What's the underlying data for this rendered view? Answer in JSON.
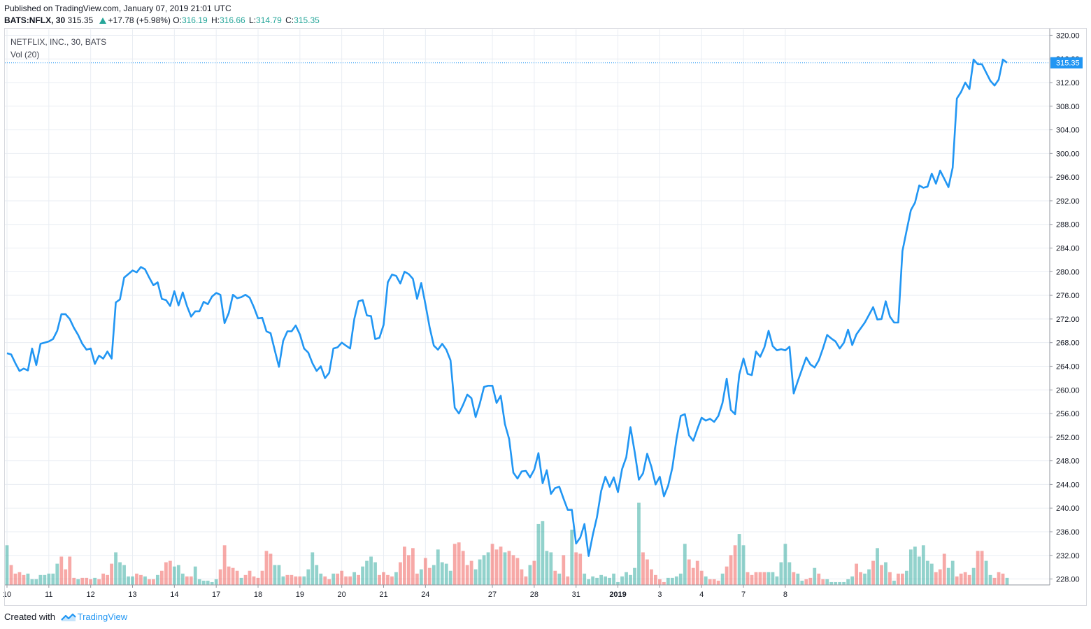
{
  "header": {
    "published": "Published on TradingView.com, January 07, 2019 21:01 UTC",
    "symbol": "BATS:NFLX, 30",
    "last": "315.35",
    "change": "+17.78 (+5.98%)",
    "open_label": "O:",
    "open": "316.19",
    "high_label": "H:",
    "high": "316.66",
    "low_label": "L:",
    "low": "314.79",
    "close_label": "C:",
    "close": "315.35",
    "up_icon": "triangle-up-icon"
  },
  "legend": {
    "series": "NETFLIX, INC., 30, BATS",
    "volume": "Vol (20)"
  },
  "footer": {
    "created": "Created with",
    "brand": "TradingView",
    "logo_icon": "tradingview-logo-icon"
  },
  "colors": {
    "line": "#2196f3",
    "vol_up": "#26a69a",
    "vol_down": "#ef5350",
    "grid": "#e9edf3",
    "axis": "#9598a1"
  },
  "chart_data": {
    "type": "line",
    "ylim": [
      227,
      321
    ],
    "y_ticks": [
      228,
      232,
      236,
      240,
      244,
      248,
      252,
      256,
      260,
      264,
      268,
      272,
      276,
      280,
      284,
      288,
      292,
      296,
      300,
      304,
      308,
      312,
      316,
      320
    ],
    "last_price_label": "315.35",
    "last_price": 315.35,
    "x_ticks": [
      {
        "label": "10",
        "i": 0
      },
      {
        "label": "11",
        "i": 10
      },
      {
        "label": "12",
        "i": 20
      },
      {
        "label": "13",
        "i": 30
      },
      {
        "label": "14",
        "i": 40
      },
      {
        "label": "17",
        "i": 50
      },
      {
        "label": "18",
        "i": 60
      },
      {
        "label": "19",
        "i": 70
      },
      {
        "label": "20",
        "i": 80
      },
      {
        "label": "21",
        "i": 90
      },
      {
        "label": "24",
        "i": 100
      },
      {
        "label": "27",
        "i": 116
      },
      {
        "label": "28",
        "i": 126
      },
      {
        "label": "31",
        "i": 136
      },
      {
        "label": "2019",
        "i": 146,
        "bold": true
      },
      {
        "label": "3",
        "i": 156
      },
      {
        "label": "4",
        "i": 166
      },
      {
        "label": "7",
        "i": 176
      },
      {
        "label": "8",
        "i": 186
      }
    ],
    "series": [
      {
        "name": "NETFLIX, INC., 30, BATS",
        "values": [
          266.2,
          266.0,
          264.5,
          263.2,
          263.6,
          263.3,
          267.0,
          264.2,
          267.8,
          268.0,
          268.2,
          268.6,
          270.0,
          272.8,
          272.8,
          272.0,
          270.5,
          269.3,
          267.8,
          266.8,
          267.0,
          264.4,
          265.8,
          265.3,
          266.5,
          265.3,
          274.8,
          275.3,
          279.0,
          279.6,
          280.2,
          279.9,
          280.8,
          280.4,
          279.0,
          277.7,
          278.2,
          275.4,
          275.2,
          274.2,
          276.7,
          274.3,
          276.5,
          274.2,
          272.4,
          273.3,
          273.3,
          274.9,
          274.5,
          275.8,
          276.4,
          276.1,
          271.3,
          273.0,
          276.1,
          275.5,
          275.7,
          276.1,
          275.6,
          274.0,
          272.1,
          272.2,
          269.9,
          269.6,
          266.7,
          263.9,
          268.3,
          269.9,
          269.9,
          270.9,
          269.4,
          267.0,
          266.3,
          264.5,
          263.2,
          264.0,
          262.0,
          262.9,
          267.0,
          267.2,
          268.0,
          267.5,
          267.0,
          272.0,
          275.0,
          275.2,
          272.6,
          272.5,
          268.6,
          268.8,
          271.0,
          278.2,
          279.5,
          279.3,
          278.0,
          280.0,
          279.6,
          278.8,
          275.4,
          278.1,
          274.5,
          270.6,
          267.5,
          266.8,
          267.8,
          266.8,
          265.0,
          257.0,
          256.0,
          257.5,
          259.2,
          258.6,
          255.4,
          257.7,
          260.5,
          260.7,
          260.7,
          257.8,
          259.0,
          254.2,
          251.7,
          246.0,
          245.0,
          246.2,
          246.3,
          245.2,
          246.5,
          249.3,
          244.2,
          246.4,
          242.4,
          243.4,
          243.6,
          241.6,
          239.7,
          239.7,
          234.0,
          235.0,
          237.3,
          231.9,
          235.5,
          238.5,
          242.9,
          245.3,
          243.6,
          245.2,
          242.7,
          246.6,
          248.6,
          253.7,
          249.5,
          244.8,
          245.9,
          249.2,
          247.0,
          244.0,
          245.3,
          242.0,
          243.8,
          246.8,
          251.7,
          255.6,
          255.9,
          252.3,
          251.4,
          253.4,
          255.3,
          254.8,
          255.1,
          254.6,
          255.6,
          257.8,
          261.9,
          256.6,
          255.9,
          262.6,
          265.3,
          262.7,
          262.5,
          266.5,
          265.6,
          267.2,
          270.0,
          267.4,
          266.7,
          266.9,
          266.7,
          267.3,
          259.4,
          261.5,
          263.5,
          265.5,
          264.3,
          263.8,
          265.0,
          267.0,
          269.3,
          268.7,
          268.2,
          267.0,
          268.0,
          270.2,
          267.6,
          269.4,
          270.4,
          271.4,
          272.7,
          274.0,
          271.9,
          272.0,
          275.0,
          272.4,
          271.4,
          271.4,
          283.5,
          287.0,
          290.4,
          291.7,
          294.6,
          294.2,
          294.4,
          296.6,
          294.9,
          297.1,
          295.7,
          294.3,
          297.6,
          309.3,
          310.4,
          312.0,
          310.9,
          315.9,
          315.1,
          315.1,
          313.7,
          312.3,
          311.5,
          312.5,
          315.9,
          315.35
        ]
      },
      {
        "name": "Vol (20)",
        "type": "bar",
        "values": [
          [
            28,
            1
          ],
          [
            14,
            0
          ],
          [
            8,
            0
          ],
          [
            9,
            0
          ],
          [
            7,
            0
          ],
          [
            8,
            1
          ],
          [
            4,
            1
          ],
          [
            4,
            1
          ],
          [
            7,
            1
          ],
          [
            7,
            1
          ],
          [
            8,
            1
          ],
          [
            8,
            1
          ],
          [
            15,
            1
          ],
          [
            20,
            0
          ],
          [
            11,
            0
          ],
          [
            20,
            0
          ],
          [
            5,
            0
          ],
          [
            4,
            1
          ],
          [
            5,
            0
          ],
          [
            5,
            0
          ],
          [
            4,
            0
          ],
          [
            5,
            1
          ],
          [
            4,
            0
          ],
          [
            8,
            0
          ],
          [
            7,
            0
          ],
          [
            15,
            0
          ],
          [
            23,
            1
          ],
          [
            16,
            1
          ],
          [
            14,
            1
          ],
          [
            6,
            1
          ],
          [
            6,
            1
          ],
          [
            8,
            0
          ],
          [
            7,
            0
          ],
          [
            6,
            1
          ],
          [
            4,
            0
          ],
          [
            4,
            0
          ],
          [
            7,
            1
          ],
          [
            10,
            0
          ],
          [
            16,
            0
          ],
          [
            17,
            0
          ],
          [
            13,
            1
          ],
          [
            14,
            1
          ],
          [
            8,
            1
          ],
          [
            6,
            0
          ],
          [
            6,
            0
          ],
          [
            13,
            1
          ],
          [
            4,
            1
          ],
          [
            3,
            1
          ],
          [
            3,
            1
          ],
          [
            2,
            1
          ],
          [
            4,
            1
          ],
          [
            11,
            0
          ],
          [
            28,
            0
          ],
          [
            13,
            0
          ],
          [
            12,
            0
          ],
          [
            10,
            0
          ],
          [
            5,
            1
          ],
          [
            7,
            0
          ],
          [
            10,
            0
          ],
          [
            6,
            0
          ],
          [
            5,
            0
          ],
          [
            10,
            0
          ],
          [
            24,
            0
          ],
          [
            22,
            0
          ],
          [
            14,
            1
          ],
          [
            14,
            1
          ],
          [
            6,
            1
          ],
          [
            7,
            0
          ],
          [
            7,
            0
          ],
          [
            6,
            0
          ],
          [
            6,
            0
          ],
          [
            6,
            1
          ],
          [
            11,
            1
          ],
          [
            23,
            1
          ],
          [
            14,
            1
          ],
          [
            8,
            1
          ],
          [
            6,
            0
          ],
          [
            4,
            0
          ],
          [
            8,
            1
          ],
          [
            8,
            0
          ],
          [
            10,
            0
          ],
          [
            6,
            0
          ],
          [
            6,
            0
          ],
          [
            9,
            1
          ],
          [
            7,
            0
          ],
          [
            13,
            1
          ],
          [
            17,
            1
          ],
          [
            20,
            1
          ],
          [
            16,
            1
          ],
          [
            7,
            0
          ],
          [
            9,
            0
          ],
          [
            7,
            0
          ],
          [
            6,
            0
          ],
          [
            9,
            1
          ],
          [
            16,
            0
          ],
          [
            27,
            0
          ],
          [
            21,
            0
          ],
          [
            26,
            0
          ],
          [
            8,
            0
          ],
          [
            11,
            1
          ],
          [
            19,
            0
          ],
          [
            12,
            0
          ],
          [
            14,
            1
          ],
          [
            25,
            1
          ],
          [
            16,
            1
          ],
          [
            15,
            1
          ],
          [
            10,
            1
          ],
          [
            29,
            0
          ],
          [
            30,
            0
          ],
          [
            24,
            0
          ],
          [
            14,
            0
          ],
          [
            17,
            0
          ],
          [
            11,
            1
          ],
          [
            18,
            1
          ],
          [
            21,
            1
          ],
          [
            23,
            1
          ],
          [
            29,
            0
          ],
          [
            25,
            0
          ],
          [
            27,
            0
          ],
          [
            23,
            1
          ],
          [
            24,
            0
          ],
          [
            21,
            0
          ],
          [
            19,
            0
          ],
          [
            11,
            0
          ],
          [
            6,
            0
          ],
          [
            14,
            1
          ],
          [
            17,
            0
          ],
          [
            43,
            1
          ],
          [
            45,
            1
          ],
          [
            24,
            1
          ],
          [
            23,
            1
          ],
          [
            10,
            0
          ],
          [
            8,
            1
          ],
          [
            21,
            0
          ],
          [
            6,
            0
          ],
          [
            39,
            1
          ],
          [
            23,
            0
          ],
          [
            22,
            0
          ],
          [
            8,
            1
          ],
          [
            4,
            1
          ],
          [
            6,
            1
          ],
          [
            5,
            1
          ],
          [
            7,
            1
          ],
          [
            6,
            1
          ],
          [
            5,
            1
          ],
          [
            8,
            1
          ],
          [
            2,
            1
          ],
          [
            6,
            1
          ],
          [
            9,
            1
          ],
          [
            7,
            1
          ],
          [
            12,
            1
          ],
          [
            58,
            1
          ],
          [
            23,
            0
          ],
          [
            18,
            0
          ],
          [
            11,
            0
          ],
          [
            7,
            0
          ],
          [
            4,
            0
          ],
          [
            2,
            0
          ],
          [
            5,
            1
          ],
          [
            5,
            1
          ],
          [
            6,
            1
          ],
          [
            8,
            1
          ],
          [
            29,
            1
          ],
          [
            18,
            0
          ],
          [
            12,
            0
          ],
          [
            17,
            0
          ],
          [
            10,
            0
          ],
          [
            6,
            1
          ],
          [
            4,
            0
          ],
          [
            4,
            0
          ],
          [
            3,
            0
          ],
          [
            8,
            1
          ],
          [
            13,
            0
          ],
          [
            21,
            0
          ],
          [
            28,
            0
          ],
          [
            36,
            1
          ],
          [
            28,
            1
          ],
          [
            9,
            0
          ],
          [
            7,
            0
          ],
          [
            9,
            0
          ],
          [
            9,
            0
          ],
          [
            9,
            0
          ],
          [
            9,
            1
          ],
          [
            9,
            1
          ],
          [
            6,
            1
          ],
          [
            16,
            1
          ],
          [
            29,
            1
          ],
          [
            16,
            1
          ],
          [
            9,
            0
          ],
          [
            8,
            1
          ],
          [
            3,
            1
          ],
          [
            4,
            0
          ],
          [
            5,
            0
          ],
          [
            12,
            1
          ],
          [
            8,
            0
          ],
          [
            4,
            0
          ],
          [
            4,
            1
          ],
          [
            2,
            1
          ],
          [
            2,
            1
          ],
          [
            2,
            1
          ],
          [
            2,
            1
          ],
          [
            4,
            1
          ],
          [
            6,
            1
          ],
          [
            15,
            0
          ],
          [
            9,
            0
          ],
          [
            8,
            1
          ],
          [
            11,
            1
          ],
          [
            17,
            0
          ],
          [
            26,
            1
          ],
          [
            14,
            0
          ],
          [
            16,
            1
          ],
          [
            9,
            0
          ],
          [
            3,
            1
          ],
          [
            8,
            0
          ],
          [
            8,
            0
          ],
          [
            10,
            1
          ],
          [
            25,
            1
          ],
          [
            27,
            1
          ],
          [
            20,
            1
          ],
          [
            28,
            1
          ],
          [
            17,
            1
          ],
          [
            15,
            1
          ],
          [
            9,
            0
          ],
          [
            11,
            0
          ],
          [
            22,
            0
          ],
          [
            12,
            1
          ],
          [
            17,
            1
          ],
          [
            6,
            0
          ],
          [
            8,
            0
          ],
          [
            9,
            0
          ],
          [
            7,
            0
          ],
          [
            12,
            1
          ],
          [
            24,
            0
          ],
          [
            24,
            0
          ],
          [
            17,
            1
          ],
          [
            7,
            1
          ],
          [
            5,
            0
          ],
          [
            9,
            0
          ],
          [
            8,
            0
          ],
          [
            5,
            1
          ]
        ]
      }
    ]
  }
}
